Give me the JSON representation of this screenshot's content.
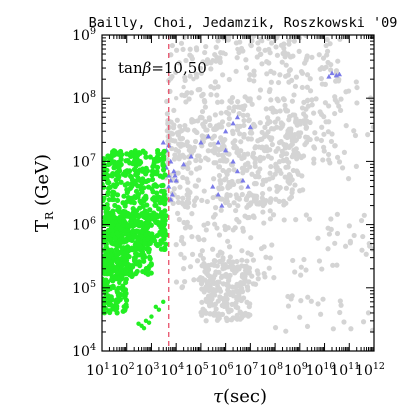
{
  "chart_data": {
    "type": "scatter",
    "header": "Bailly, Choi, Jedamzik, Roszkowski '09",
    "annotation": {
      "base": "tan",
      "symbol": "β",
      "rest": "=10,50"
    },
    "xlabel": {
      "symbol": "τ",
      "unit": "(sec)"
    },
    "ylabel": {
      "main": "T",
      "sub": "R",
      "unit": " (GeV)"
    },
    "x_scale": "log",
    "y_scale": "log",
    "xlim": [
      10,
      1000000000000
    ],
    "ylim": [
      10000,
      1000000000
    ],
    "x_ticks": [
      {
        "exp": 1,
        "label": "10",
        "power": "1"
      },
      {
        "exp": 2,
        "label": "10",
        "power": "2"
      },
      {
        "exp": 3,
        "label": "10",
        "power": "3"
      },
      {
        "exp": 4,
        "label": "10",
        "power": "4"
      },
      {
        "exp": 5,
        "label": "10",
        "power": "5"
      },
      {
        "exp": 6,
        "label": "10",
        "power": "6"
      },
      {
        "exp": 7,
        "label": "10",
        "power": "7"
      },
      {
        "exp": 8,
        "label": "10",
        "power": "8"
      },
      {
        "exp": 9,
        "label": "10",
        "power": "9"
      },
      {
        "exp": 10,
        "label": "10",
        "power": "10"
      },
      {
        "exp": 11,
        "label": "10",
        "power": "11"
      },
      {
        "exp": 12,
        "label": "10",
        "power": "12"
      }
    ],
    "y_ticks": [
      {
        "exp": 4,
        "label": "10",
        "power": "4"
      },
      {
        "exp": 5,
        "label": "10",
        "power": "5"
      },
      {
        "exp": 6,
        "label": "10",
        "power": "6"
      },
      {
        "exp": 7,
        "label": "10",
        "power": "7"
      },
      {
        "exp": 8,
        "label": "10",
        "power": "8"
      },
      {
        "exp": 9,
        "label": "10",
        "power": "9"
      }
    ],
    "reference_line": {
      "x": 5000,
      "color": "#e8506a",
      "style": "dashed"
    },
    "series": [
      {
        "color": "#d4d4d4",
        "marker": "circle",
        "bands": [
          {
            "x_range": [
              4000,
              50000000000
            ],
            "y_range": [
              10000000,
              1000000000
            ],
            "density": 0.9
          },
          {
            "x_range": [
              3000,
              1000000000
            ],
            "y_range": [
              2000000,
              50000000
            ],
            "density": 0.8
          },
          {
            "x_range": [
              100000000,
              1000000000000
            ],
            "y_range": [
              20000,
              200000000
            ],
            "density": 0.25
          },
          {
            "x_range": [
              100000,
              10000000
            ],
            "y_range": [
              30000,
              300000
            ],
            "density": 0.5
          },
          {
            "x_range": [
              10000,
              100000000
            ],
            "y_range": [
              100000,
              3000000
            ],
            "density": 0.3
          }
        ],
        "points": [
          [
            10000,
            100000000
          ],
          [
            20000,
            150000000
          ],
          [
            50000,
            200000000
          ],
          [
            100000,
            300000000
          ],
          [
            300000,
            400000000
          ],
          [
            1000000,
            500000000
          ],
          [
            3000000,
            600000000
          ],
          [
            10000000,
            700000000
          ],
          [
            30000000,
            800000000
          ],
          [
            100000000,
            850000000
          ],
          [
            1000000000,
            900000000
          ]
        ]
      },
      {
        "color": "#7a7ae8",
        "marker": "triangle",
        "points": [
          [
            3000,
            20000000
          ],
          [
            4000,
            15000000
          ],
          [
            5000,
            18000000
          ],
          [
            6000,
            10000000
          ],
          [
            8000,
            7000000
          ],
          [
            10000,
            5000000
          ],
          [
            7000,
            3000000
          ],
          [
            6000,
            2500000
          ],
          [
            5000,
            4000000
          ],
          [
            9000,
            6000000
          ],
          [
            20000,
            9000000
          ],
          [
            40000,
            12000000
          ],
          [
            100000,
            20000000
          ],
          [
            200000,
            25000000
          ],
          [
            500000,
            20000000
          ],
          [
            1000000,
            15000000
          ],
          [
            2000000,
            10000000
          ],
          [
            3000000,
            7000000
          ],
          [
            5000000,
            5000000
          ],
          [
            8000000,
            4000000
          ],
          [
            1000000,
            30000000
          ],
          [
            2000000,
            40000000
          ],
          [
            3000000,
            50000000
          ],
          [
            10000000,
            35000000
          ],
          [
            20000000000,
            250000000
          ],
          [
            30000000000,
            230000000
          ],
          [
            15000000000,
            220000000
          ],
          [
            40000000000,
            240000000
          ],
          [
            4000,
            8000000
          ],
          [
            5000,
            6000000
          ],
          [
            6000,
            5000000
          ],
          [
            300000,
            4000000
          ],
          [
            500000,
            3000000
          ],
          [
            700000,
            2000000
          ]
        ]
      },
      {
        "color": "#22ee22",
        "marker": "circle",
        "bands": [
          {
            "x_range": [
              10,
              4000
            ],
            "y_range": [
              400000,
              15000000
            ],
            "density": 1.0
          },
          {
            "x_range": [
              10,
              1000
            ],
            "y_range": [
              150000,
              1500000
            ],
            "density": 0.7
          },
          {
            "x_range": [
              10,
              100
            ],
            "y_range": [
              40000,
              400000
            ],
            "density": 0.35
          }
        ],
        "points": [
          [
            15,
            80000
          ],
          [
            20,
            60000
          ],
          [
            12,
            50000
          ],
          [
            30,
            100000
          ],
          [
            50,
            120000
          ],
          [
            80,
            90000
          ],
          [
            100,
            200000
          ],
          [
            200,
            300000
          ],
          [
            150,
            180000
          ],
          [
            300,
            27000
          ],
          [
            400,
            25000
          ],
          [
            500,
            23000
          ],
          [
            600,
            30000
          ],
          [
            800,
            28000
          ],
          [
            1000,
            35000
          ],
          [
            2000,
            45000
          ],
          [
            3000,
            60000
          ],
          [
            1500,
            50000
          ],
          [
            100,
            50000
          ],
          [
            80,
            70000
          ],
          [
            25,
            150000
          ],
          [
            40,
            250000
          ]
        ]
      }
    ]
  }
}
